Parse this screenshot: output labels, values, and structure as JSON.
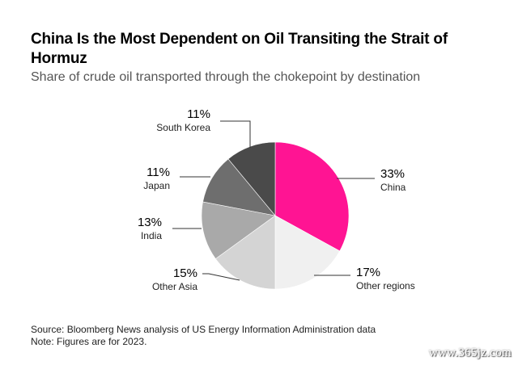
{
  "title": "China Is the Most Dependent on Oil Transiting the Strait of Hormuz",
  "subtitle": "Share of crude oil transported through the chokepoint by destination",
  "footer": {
    "source": "Source: Bloomberg News analysis of US Energy Information Administration data",
    "note": "Note: Figures are for 2023."
  },
  "watermark": "www.365jz.com",
  "chart_data": {
    "type": "pie",
    "slices": [
      {
        "name": "China",
        "value": 33,
        "label": "33%",
        "color": "#ff1493"
      },
      {
        "name": "Other regions",
        "value": 17,
        "label": "17%",
        "color": "#f0f0f0"
      },
      {
        "name": "Other Asia",
        "value": 15,
        "label": "15%",
        "color": "#d4d4d4"
      },
      {
        "name": "India",
        "value": 13,
        "label": "13%",
        "color": "#a9a9a9"
      },
      {
        "name": "Japan",
        "value": 11,
        "label": "11%",
        "color": "#6e6e6e"
      },
      {
        "name": "South Korea",
        "value": 11,
        "label": "11%",
        "color": "#4a4a4a"
      }
    ]
  }
}
